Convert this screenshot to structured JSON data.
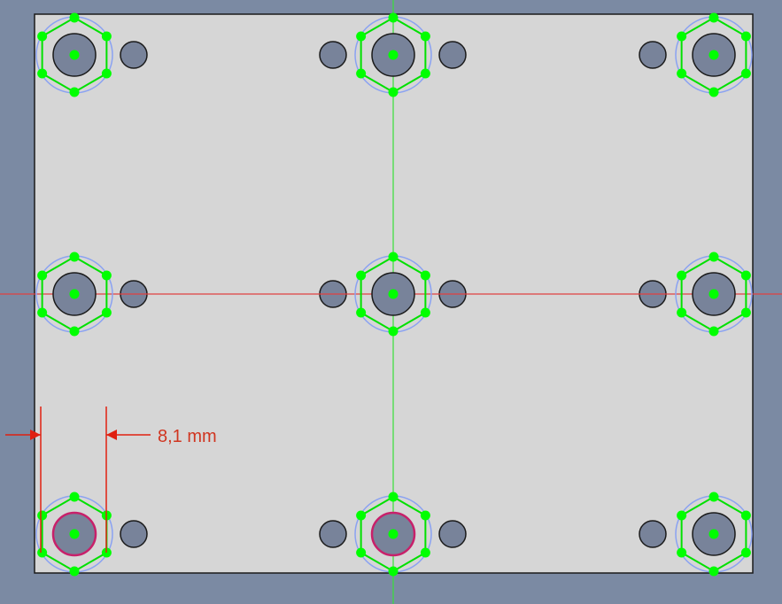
{
  "colors": {
    "background": "#7b8aa3",
    "plate_fill": "#d6d6d6",
    "plate_stroke": "#1a1a1a",
    "hole_fill": "#78839a",
    "hole_stroke": "#1a1a1a",
    "sketch_geometry": "#00e000",
    "sketch_vertex": "#00ff00",
    "construction_circle": "#8aa2f2",
    "vertical_axis": "#38e038",
    "horizontal_axis": "#e04040",
    "selection": "#c8206a",
    "dimension": "#e02010",
    "dimension_label": "#d03520"
  },
  "dimension": {
    "label": "8,1 mm",
    "value_mm": 8.1
  },
  "hex_nuts": [
    {
      "id": "top-left",
      "row": 0,
      "col": 0,
      "selected": false
    },
    {
      "id": "top-center",
      "row": 0,
      "col": 1,
      "selected": false
    },
    {
      "id": "top-right",
      "row": 0,
      "col": 2,
      "selected": false
    },
    {
      "id": "middle-left",
      "row": 1,
      "col": 0,
      "selected": false
    },
    {
      "id": "middle-center",
      "row": 1,
      "col": 1,
      "selected": false
    },
    {
      "id": "middle-right",
      "row": 1,
      "col": 2,
      "selected": false
    },
    {
      "id": "bottom-left",
      "row": 2,
      "col": 0,
      "selected": true
    },
    {
      "id": "bottom-center",
      "row": 2,
      "col": 1,
      "selected": true
    },
    {
      "id": "bottom-right",
      "row": 2,
      "col": 2,
      "selected": false
    }
  ]
}
